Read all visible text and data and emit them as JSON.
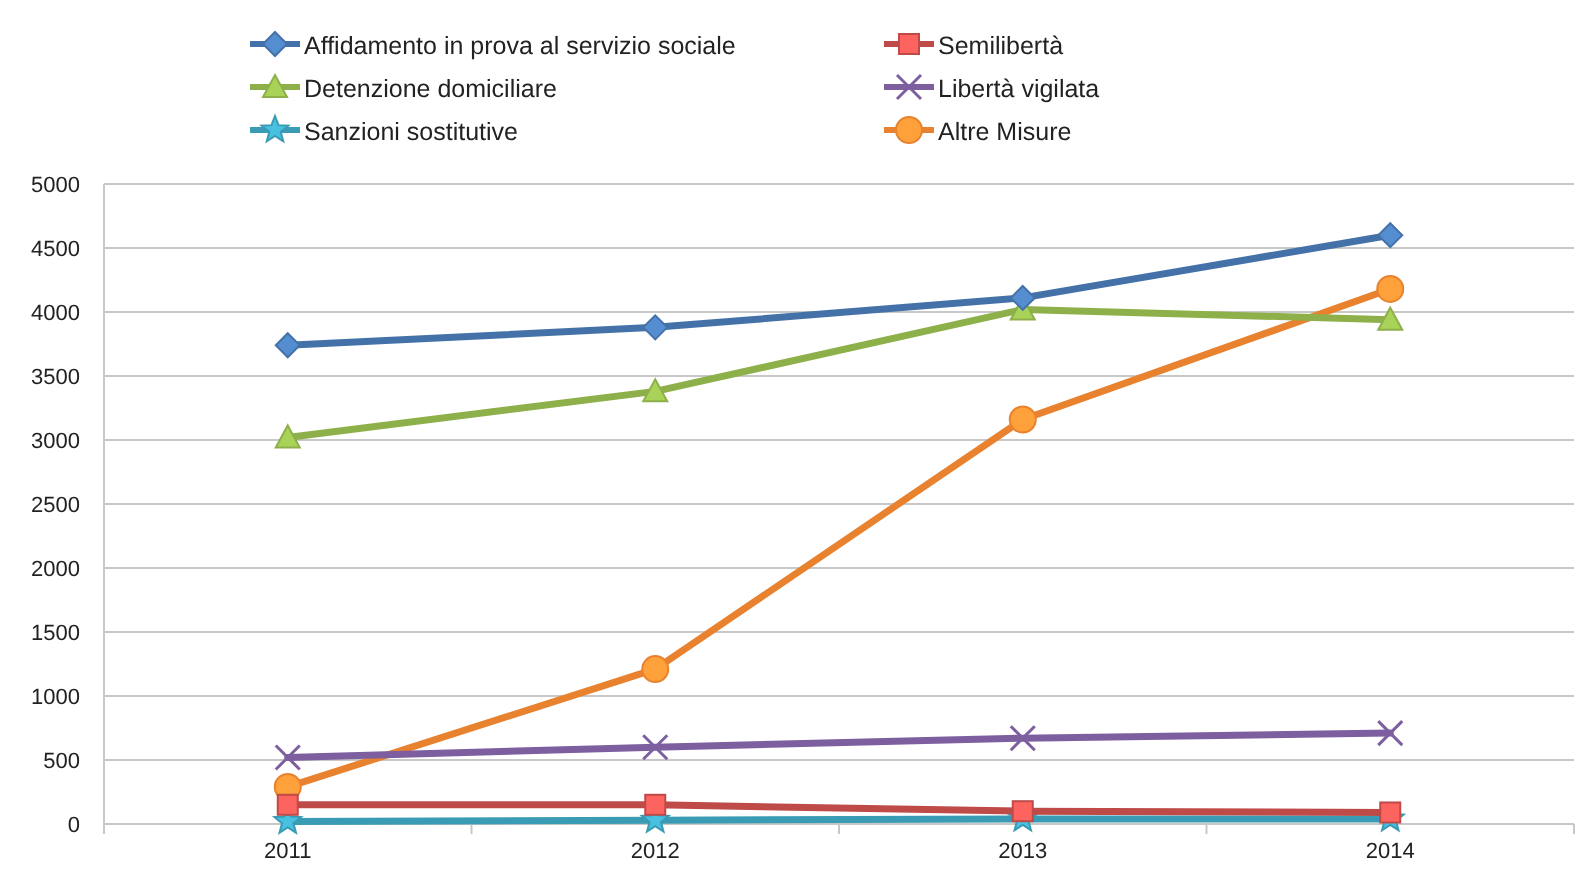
{
  "chart_data": {
    "type": "line",
    "categories": [
      "2011",
      "2012",
      "2013",
      "2014"
    ],
    "series": [
      {
        "name": "Affidamento in prova al servizio sociale",
        "color": "#4472a8",
        "marker": "diamond",
        "values": [
          3740,
          3880,
          4110,
          4600
        ]
      },
      {
        "name": "Semilibertà",
        "color": "#be4b48",
        "marker": "square",
        "values": [
          150,
          150,
          100,
          90
        ]
      },
      {
        "name": "Detenzione domiciliare",
        "color": "#8db04a",
        "marker": "triangle",
        "values": [
          3020,
          3380,
          4020,
          3940
        ]
      },
      {
        "name": "Libertà vigilata",
        "color": "#7d5fa0",
        "marker": "cross",
        "values": [
          520,
          600,
          670,
          710
        ]
      },
      {
        "name": "Sanzioni sostitutive",
        "color": "#3a9bb5",
        "marker": "star",
        "values": [
          20,
          30,
          40,
          40
        ]
      },
      {
        "name": "Altre Misure",
        "color": "#e9822f",
        "marker": "circle",
        "values": [
          290,
          1210,
          3160,
          4180
        ]
      }
    ],
    "ylim": [
      0,
      5000
    ],
    "yticks": [
      0,
      500,
      1000,
      1500,
      2000,
      2500,
      3000,
      3500,
      4000,
      4500,
      5000
    ],
    "grid": "y",
    "legend": "top"
  }
}
